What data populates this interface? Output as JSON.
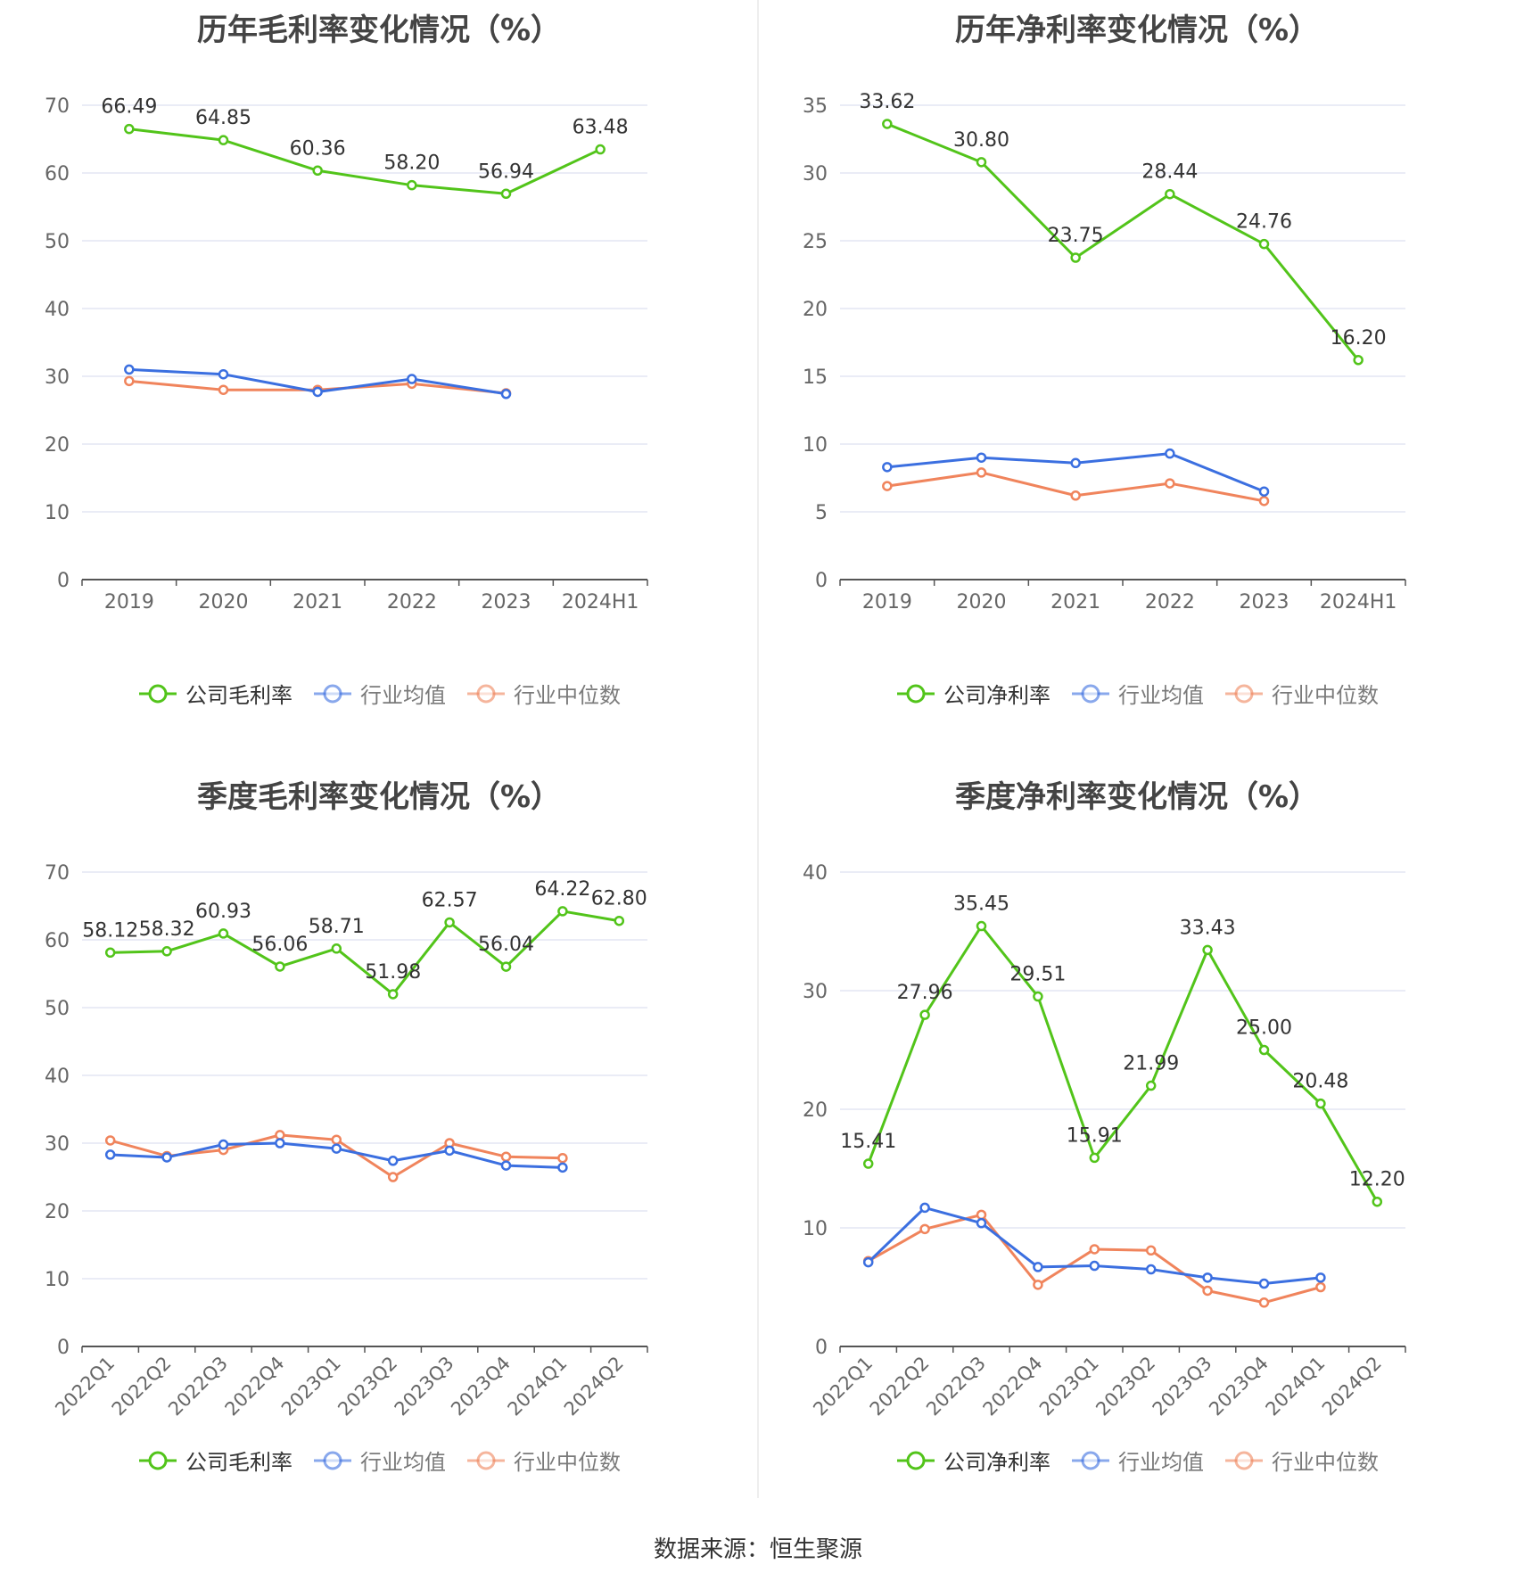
{
  "colors": {
    "company": "#52c41a",
    "avg": "#3b6fe0",
    "median": "#f0845c",
    "grid": "#e3e6f3",
    "axis": "#666666"
  },
  "source": "数据来源：恒生聚源",
  "panels": [
    {
      "title": "历年毛利率变化情况（%）",
      "legend": [
        "公司毛利率",
        "行业均值",
        "行业中位数"
      ],
      "chart_data": {
        "type": "line",
        "categories": [
          "2019",
          "2020",
          "2021",
          "2022",
          "2023",
          "2024H1"
        ],
        "ylim": [
          0,
          70
        ],
        "yticks": [
          0,
          10,
          20,
          30,
          40,
          50,
          60,
          70
        ],
        "series": [
          {
            "name": "公司毛利率",
            "values": [
              66.49,
              64.85,
              60.36,
              58.2,
              56.94,
              63.48
            ],
            "labels": [
              "66.49",
              "64.85",
              "60.36",
              "58.20",
              "56.94",
              "63.48"
            ]
          },
          {
            "name": "行业均值",
            "values": [
              31.0,
              30.3,
              27.7,
              29.6,
              27.4,
              null
            ]
          },
          {
            "name": "行业中位数",
            "values": [
              29.3,
              28.0,
              28.0,
              28.9,
              27.5,
              null
            ]
          }
        ]
      }
    },
    {
      "title": "历年净利率变化情况（%）",
      "legend": [
        "公司净利率",
        "行业均值",
        "行业中位数"
      ],
      "chart_data": {
        "type": "line",
        "categories": [
          "2019",
          "2020",
          "2021",
          "2022",
          "2023",
          "2024H1"
        ],
        "ylim": [
          0,
          35
        ],
        "yticks": [
          0,
          5,
          10,
          15,
          20,
          25,
          30,
          35
        ],
        "series": [
          {
            "name": "公司净利率",
            "values": [
              33.62,
              30.8,
              23.75,
              28.44,
              24.76,
              16.2
            ],
            "labels": [
              "33.62",
              "30.80",
              "23.75",
              "28.44",
              "24.76",
              "16.20"
            ]
          },
          {
            "name": "行业均值",
            "values": [
              8.3,
              9.0,
              8.6,
              9.3,
              6.5,
              null
            ]
          },
          {
            "name": "行业中位数",
            "values": [
              6.9,
              7.9,
              6.2,
              7.1,
              5.8,
              null
            ]
          }
        ]
      }
    },
    {
      "title": "季度毛利率变化情况（%）",
      "legend": [
        "公司毛利率",
        "行业均值",
        "行业中位数"
      ],
      "chart_data": {
        "type": "line",
        "categories": [
          "2022Q1",
          "2022Q2",
          "2022Q3",
          "2022Q4",
          "2023Q1",
          "2023Q2",
          "2023Q3",
          "2023Q4",
          "2024Q1",
          "2024Q2"
        ],
        "rotate_x": true,
        "ylim": [
          0,
          70
        ],
        "yticks": [
          0,
          10,
          20,
          30,
          40,
          50,
          60,
          70
        ],
        "series": [
          {
            "name": "公司毛利率",
            "values": [
              58.12,
              58.32,
              60.93,
              56.06,
              58.71,
              51.98,
              62.57,
              56.04,
              64.22,
              62.8
            ],
            "labels": [
              "58.12",
              "58.32",
              "60.93",
              "56.06",
              "58.71",
              "51.98",
              "62.57",
              "56.04",
              "64.22",
              "62.80"
            ]
          },
          {
            "name": "行业均值",
            "values": [
              28.3,
              27.9,
              29.8,
              30.0,
              29.2,
              27.4,
              28.9,
              26.7,
              26.4,
              null
            ]
          },
          {
            "name": "行业中位数",
            "values": [
              30.4,
              28.1,
              29.0,
              31.2,
              30.5,
              25.0,
              30.0,
              28.0,
              27.8,
              null
            ]
          }
        ]
      }
    },
    {
      "title": "季度净利率变化情况（%）",
      "legend": [
        "公司净利率",
        "行业均值",
        "行业中位数"
      ],
      "chart_data": {
        "type": "line",
        "categories": [
          "2022Q1",
          "2022Q2",
          "2022Q3",
          "2022Q4",
          "2023Q1",
          "2023Q2",
          "2023Q3",
          "2023Q4",
          "2024Q1",
          "2024Q2"
        ],
        "rotate_x": true,
        "ylim": [
          0,
          40
        ],
        "yticks": [
          0,
          10,
          20,
          30,
          40
        ],
        "series": [
          {
            "name": "公司净利率",
            "values": [
              15.41,
              27.96,
              35.45,
              29.51,
              15.91,
              21.99,
              33.43,
              25.0,
              20.48,
              12.2
            ],
            "labels": [
              "15.41",
              "27.96",
              "35.45",
              "29.51",
              "15.91",
              "21.99",
              "33.43",
              "25.00",
              "20.48",
              "12.20"
            ]
          },
          {
            "name": "行业均值",
            "values": [
              7.1,
              11.7,
              10.4,
              6.7,
              6.8,
              6.5,
              5.8,
              5.3,
              5.8,
              null
            ]
          },
          {
            "name": "行业中位数",
            "values": [
              7.2,
              9.9,
              11.1,
              5.2,
              8.2,
              8.1,
              4.7,
              3.7,
              5.0,
              null
            ]
          }
        ]
      }
    }
  ]
}
